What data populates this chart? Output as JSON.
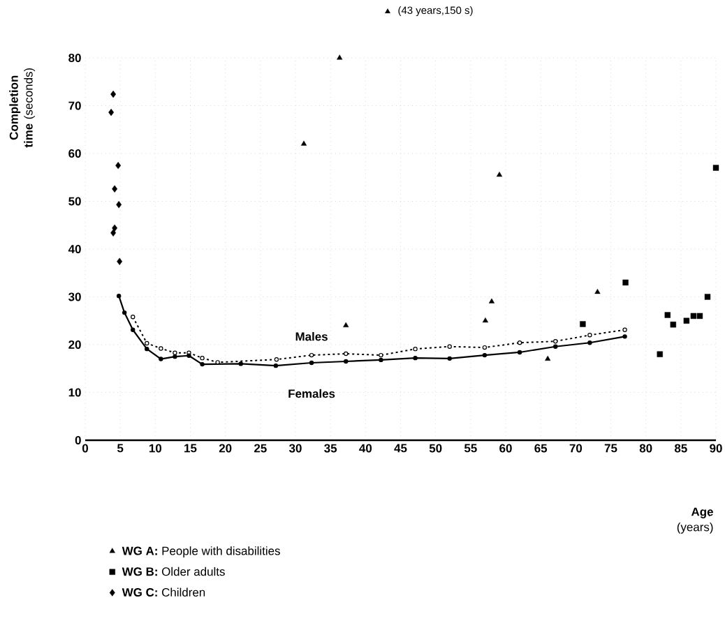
{
  "chart_data": {
    "type": "scatter",
    "xlabel": "**Age** (years)",
    "ylabel": "**Completion time** (seconds)",
    "xlim": [
      0,
      90
    ],
    "ylim": [
      0,
      80
    ],
    "xticks": [
      0,
      5,
      10,
      15,
      20,
      25,
      30,
      35,
      40,
      45,
      50,
      55,
      60,
      65,
      70,
      75,
      80,
      85,
      90
    ],
    "yticks": [
      0,
      10,
      20,
      30,
      40,
      50,
      60,
      70,
      80
    ],
    "grid": true,
    "legend": "bottom left",
    "annotations": [
      "(43 years,150 s)"
    ],
    "series": [
      {
        "name": "**WG A:** People with disabilities",
        "marker": "triangle",
        "color": "#000000",
        "x": [
          31.2,
          36.3,
          37.2,
          57.1,
          58.0,
          59.1,
          66.0,
          73.1
        ],
        "values": [
          62,
          80,
          24,
          25,
          29,
          55.5,
          17,
          31
        ]
      },
      {
        "name": "**WG B:** Older adults",
        "marker": "square",
        "color": "#000000",
        "x": [
          71.0,
          77.1,
          82.0,
          83.1,
          83.9,
          85.8,
          86.8,
          87.7,
          88.8,
          90.0
        ],
        "values": [
          24.3,
          33,
          18,
          26.2,
          24.2,
          25,
          26,
          26,
          30,
          57
        ]
      },
      {
        "name": "**WG C:** Children",
        "marker": "diamond",
        "color": "#000000",
        "x": [
          4.0,
          3.7,
          4.7,
          4.2,
          4.8,
          4.2,
          4.0,
          4.9
        ],
        "values": [
          72.4,
          68.6,
          57.5,
          52.6,
          49.3,
          44.4,
          43.4,
          37.4
        ]
      },
      {
        "name": "Males",
        "type": "line",
        "marker": "circle",
        "line_style": "dotted",
        "color": "#000000",
        "x": [
          6.8,
          8.8,
          10.8,
          12.8,
          14.8,
          16.7,
          18.9,
          27.3,
          32.3,
          37.2,
          42.2,
          47.1,
          52,
          57,
          62,
          67.1,
          72,
          77
        ],
        "values": [
          25.8,
          20.3,
          19.2,
          18.3,
          18.3,
          17.2,
          16.3,
          16.9,
          17.8,
          18.1,
          17.8,
          19.1,
          19.6,
          19.4,
          20.4,
          20.7,
          22.0,
          23.1
        ]
      },
      {
        "name": "Females",
        "type": "line",
        "marker": "circle",
        "line_style": "solid",
        "color": "#000000",
        "x": [
          4.8,
          5.6,
          6.8,
          8.8,
          10.8,
          12.8,
          14.8,
          16.7,
          22.2,
          27.2,
          32.3,
          37.2,
          42.2,
          47.1,
          52,
          57,
          62,
          67.1,
          72,
          77
        ],
        "values": [
          30.2,
          26.7,
          23.1,
          19.1,
          17.0,
          17.5,
          17.7,
          15.9,
          16.0,
          15.6,
          16.2,
          16.5,
          16.8,
          17.2,
          17.1,
          17.8,
          18.4,
          19.6,
          20.4,
          21.7
        ]
      }
    ]
  }
}
